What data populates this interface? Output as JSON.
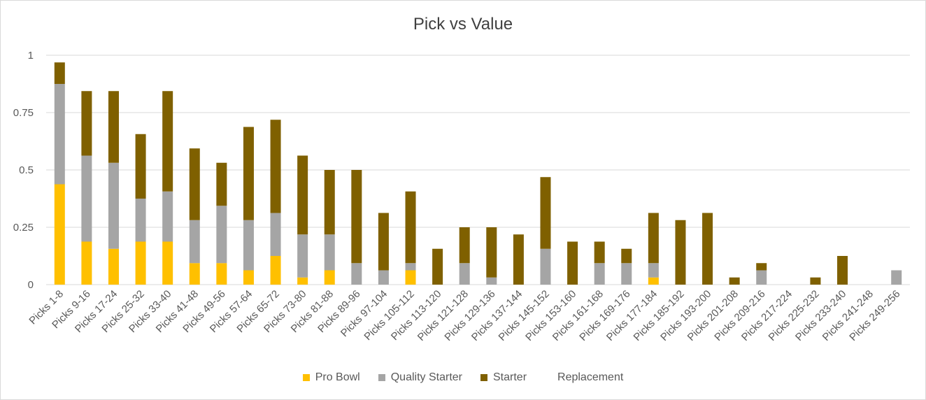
{
  "chart_data": {
    "type": "bar",
    "stacked": true,
    "title": "Pick vs Value",
    "xlabel": "",
    "ylabel": "",
    "ylim": [
      0,
      1
    ],
    "yticks": [
      "0",
      "0.25",
      "0.5",
      "0.75",
      "1"
    ],
    "grid": true,
    "legend_position": "bottom",
    "categories": [
      "Picks 1-8",
      "Picks 9-16",
      "Picks 17-24",
      "Picks 25-32",
      "Picks 33-40",
      "Picks 41-48",
      "Picks 49-56",
      "Picks 57-64",
      "Picks 65-72",
      "Picks 73-80",
      "Picks 81-88",
      "Picks 89-96",
      "Picks 97-104",
      "Picks 105-112",
      "Picks 113-120",
      "Picks 121-128",
      "Picks 129-136",
      "Picks 137-144",
      "Picks 145-152",
      "Picks 153-160",
      "Picks 161-168",
      "Picks 169-176",
      "Picks 177-184",
      "Picks 185-192",
      "Picks 193-200",
      "Picks 201-208",
      "Picks 209-216",
      "Picks 217-224",
      "Picks 225-232",
      "Picks 233-240",
      "Picks 241-248",
      "Picks 249-256"
    ],
    "series": [
      {
        "name": "Pro Bowl",
        "color": "#FFC000",
        "values": [
          0.4375,
          0.1875,
          0.15625,
          0.1875,
          0.1875,
          0.09375,
          0.09375,
          0.0625,
          0.125,
          0.03125,
          0.0625,
          0,
          0,
          0.0625,
          0,
          0,
          0,
          0,
          0,
          0,
          0,
          0,
          0.03125,
          0,
          0,
          0,
          0,
          0,
          0,
          0,
          0,
          0
        ]
      },
      {
        "name": "Quality Starter",
        "color": "#A5A5A5",
        "values": [
          0.4375,
          0.375,
          0.375,
          0.1875,
          0.21875,
          0.1875,
          0.25,
          0.21875,
          0.1875,
          0.1875,
          0.15625,
          0.09375,
          0.0625,
          0.03125,
          0,
          0.09375,
          0.03125,
          0,
          0.15625,
          0,
          0.09375,
          0.09375,
          0.0625,
          0,
          0,
          0,
          0.0625,
          0,
          0,
          0,
          0,
          0.0625
        ]
      },
      {
        "name": "Starter",
        "color": "#7F6000",
        "values": [
          0.09375,
          0.28125,
          0.3125,
          0.28125,
          0.4375,
          0.3125,
          0.1875,
          0.40625,
          0.40625,
          0.34375,
          0.28125,
          0.40625,
          0.25,
          0.3125,
          0.15625,
          0.15625,
          0.21875,
          0.21875,
          0.3125,
          0.1875,
          0.09375,
          0.0625,
          0.21875,
          0.28125,
          0.3125,
          0.03125,
          0.03125,
          0,
          0.03125,
          0.125,
          0,
          0
        ]
      },
      {
        "name": "Replacement",
        "color": "#FFFFFF",
        "values": [
          0,
          0,
          0,
          0,
          0,
          0,
          0,
          0,
          0,
          0,
          0,
          0,
          0,
          0,
          0,
          0,
          0,
          0,
          0,
          0,
          0,
          0,
          0,
          0,
          0,
          0,
          0,
          0,
          0,
          0,
          0,
          0
        ]
      }
    ]
  }
}
